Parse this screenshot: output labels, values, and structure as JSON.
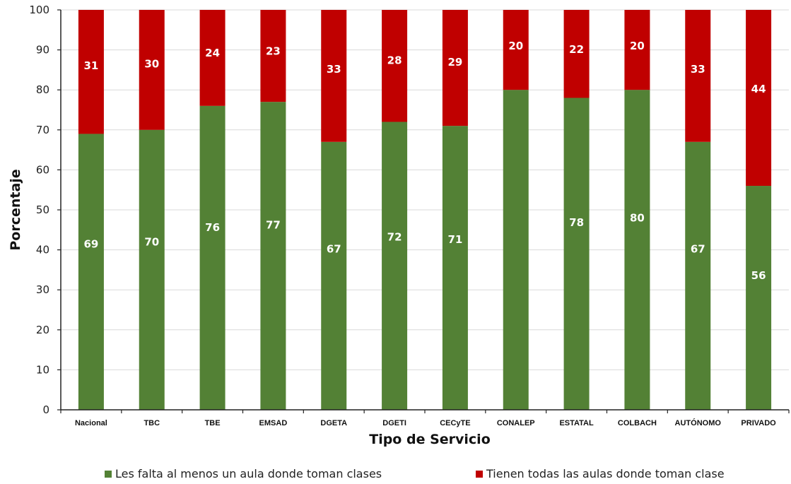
{
  "chart_data": {
    "type": "bar",
    "stacked": true,
    "title": "",
    "xlabel": "Tipo de Servicio",
    "ylabel": "Porcentaje",
    "ylim": [
      0,
      100
    ],
    "yticks": [
      "0",
      "10",
      "20",
      "30",
      "40",
      "50",
      "60",
      "70",
      "80",
      "90",
      "100"
    ],
    "grid": true,
    "legend_position": "bottom",
    "categories": [
      "Nacional",
      "TBC",
      "TBE",
      "EMSAD",
      "DGETA",
      "DGETI",
      "CECyTE",
      "CONALEP",
      "ESTATAL",
      "COLBACH",
      "AUTÓNOMO",
      "PRIVADO"
    ],
    "series": [
      {
        "name": "Les falta al menos un aula donde toman clases",
        "color": "#538135",
        "values": [
          69,
          70,
          76,
          77,
          67,
          72,
          71,
          80,
          78,
          80,
          67,
          56
        ],
        "labels": [
          "69",
          "70",
          "76",
          "77",
          "67",
          "72",
          "71",
          "",
          "78",
          "80",
          "67",
          "56"
        ]
      },
      {
        "name": "Tienen todas las aulas donde toman clase",
        "color": "#C00000",
        "values": [
          31,
          30,
          24,
          23,
          33,
          28,
          29,
          20,
          22,
          20,
          33,
          44
        ],
        "labels": [
          "31",
          "30",
          "24",
          "23",
          "33",
          "28",
          "29",
          "20",
          "22",
          "20",
          "33",
          "44"
        ]
      }
    ]
  }
}
